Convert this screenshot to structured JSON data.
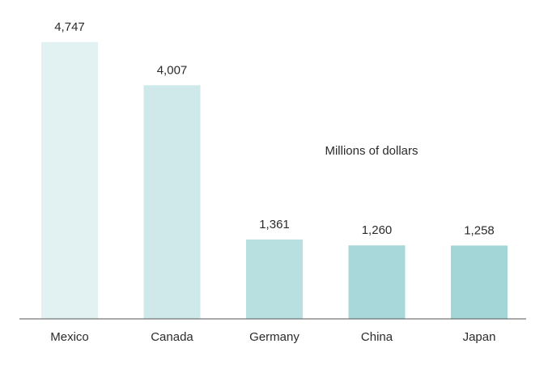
{
  "chart_data": {
    "type": "bar",
    "categories": [
      "Mexico",
      "Canada",
      "Germany",
      "China",
      "Japan"
    ],
    "values": [
      4747,
      4007,
      1361,
      1260,
      1258
    ],
    "value_labels": [
      "4,747",
      "4,007",
      "1,361",
      "1,260",
      "1,258"
    ],
    "unit_label": "Millions of dollars",
    "ylim": [
      0,
      4747
    ],
    "grid": false,
    "legend": "none",
    "bar_colors": [
      "#e2f2f2",
      "#cfe9ea",
      "#b9e0e0",
      "#a8d8d9",
      "#a3d6d6"
    ],
    "baseline_color": "#555555",
    "text_color": "#2b2b2b"
  }
}
